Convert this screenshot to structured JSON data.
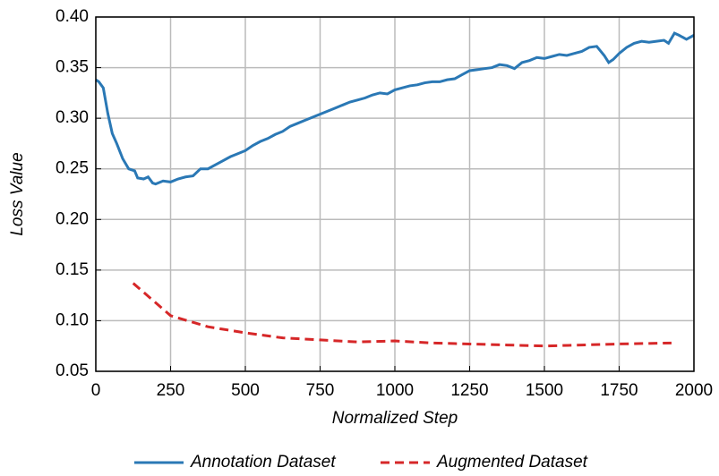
{
  "chart_data": {
    "type": "line",
    "xlabel": "Normalized Step",
    "ylabel": "Loss Value",
    "xlim": [
      0,
      2000
    ],
    "xticks": [
      0,
      250,
      500,
      750,
      1000,
      1250,
      1500,
      1750,
      2000
    ],
    "ylim": [
      0.05,
      0.4
    ],
    "yticks": [
      0.05,
      {
        "value": 0.1,
        "label": "0.10"
      },
      0.15,
      {
        "value": 0.2,
        "label": "0.20"
      },
      0.25,
      {
        "value": 0.3,
        "label": "0.30"
      },
      0.35,
      {
        "value": 0.4,
        "label": "0.40"
      }
    ],
    "grid": true,
    "legend": "bottom",
    "series": [
      {
        "name": "Annotation Dataset",
        "color": "#2a78b5",
        "style": "solid",
        "x": [
          0,
          10,
          25,
          40,
          55,
          70,
          90,
          110,
          130,
          140,
          160,
          175,
          190,
          200,
          225,
          250,
          275,
          300,
          325,
          350,
          375,
          400,
          425,
          450,
          475,
          500,
          525,
          550,
          575,
          600,
          625,
          650,
          675,
          700,
          725,
          750,
          775,
          800,
          825,
          850,
          875,
          900,
          925,
          950,
          975,
          1000,
          1025,
          1050,
          1075,
          1100,
          1125,
          1150,
          1175,
          1200,
          1225,
          1250,
          1275,
          1300,
          1325,
          1350,
          1375,
          1400,
          1425,
          1450,
          1475,
          1500,
          1525,
          1550,
          1575,
          1600,
          1625,
          1650,
          1675,
          1700,
          1715,
          1730,
          1750,
          1775,
          1800,
          1825,
          1850,
          1875,
          1900,
          1915,
          1935,
          1950,
          1975,
          2000
        ],
        "values": [
          0.338,
          0.336,
          0.33,
          0.305,
          0.285,
          0.275,
          0.26,
          0.25,
          0.248,
          0.241,
          0.24,
          0.242,
          0.236,
          0.235,
          0.238,
          0.237,
          0.24,
          0.242,
          0.243,
          0.25,
          0.25,
          0.254,
          0.258,
          0.262,
          0.265,
          0.268,
          0.273,
          0.277,
          0.28,
          0.284,
          0.287,
          0.292,
          0.295,
          0.298,
          0.301,
          0.304,
          0.307,
          0.31,
          0.313,
          0.316,
          0.318,
          0.32,
          0.323,
          0.325,
          0.324,
          0.328,
          0.33,
          0.332,
          0.333,
          0.335,
          0.336,
          0.336,
          0.338,
          0.339,
          0.343,
          0.347,
          0.348,
          0.349,
          0.35,
          0.353,
          0.352,
          0.349,
          0.355,
          0.357,
          0.36,
          0.359,
          0.361,
          0.363,
          0.362,
          0.364,
          0.366,
          0.37,
          0.371,
          0.362,
          0.355,
          0.358,
          0.364,
          0.37,
          0.374,
          0.376,
          0.375,
          0.376,
          0.377,
          0.374,
          0.384,
          0.382,
          0.378,
          0.382
        ]
      },
      {
        "name": "Augmented Dataset",
        "color": "#d62728",
        "style": "dashed",
        "x": [
          125,
          250,
          375,
          500,
          625,
          750,
          875,
          1000,
          1125,
          1250,
          1375,
          1500,
          1625,
          1750,
          1925
        ],
        "values": [
          0.137,
          0.105,
          0.094,
          0.088,
          0.083,
          0.081,
          0.079,
          0.08,
          0.078,
          0.077,
          0.076,
          0.075,
          0.076,
          0.077,
          0.078
        ]
      }
    ]
  }
}
